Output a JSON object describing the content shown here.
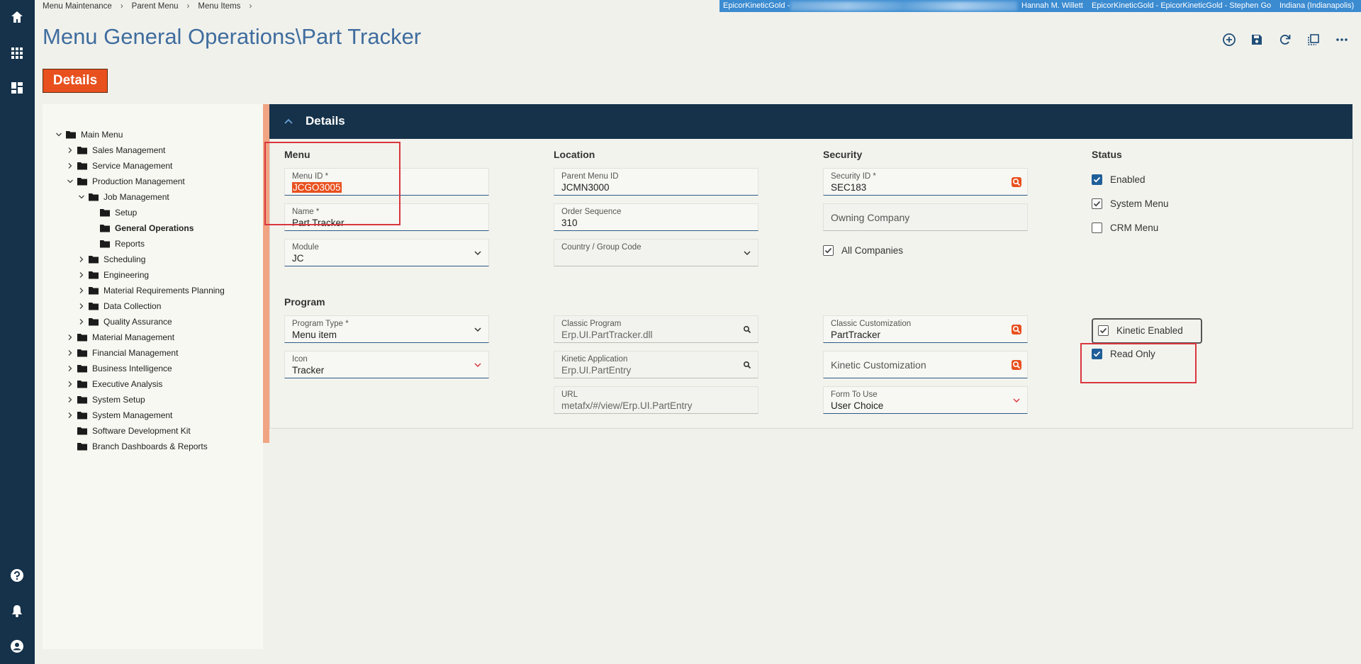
{
  "breadcrumb": [
    "Menu Maintenance",
    "Parent Menu",
    "Menu Items"
  ],
  "banner": [
    "EpicorKineticGold -",
    "Hannah M. Willett",
    "EpicorKineticGold - EpicorKineticGold - Stephen Go",
    "Indiana (Indianapolis)"
  ],
  "page_title": "Menu General Operations\\Part Tracker",
  "tab": "Details",
  "tree": [
    {
      "label": "Main Menu",
      "level": 0,
      "expanded": true
    },
    {
      "label": "Sales Management",
      "level": 1,
      "expanded": false
    },
    {
      "label": "Service Management",
      "level": 1,
      "expanded": false
    },
    {
      "label": "Production Management",
      "level": 1,
      "expanded": true
    },
    {
      "label": "Job Management",
      "level": 2,
      "expanded": true
    },
    {
      "label": "Setup",
      "level": 3
    },
    {
      "label": "General Operations",
      "level": 3,
      "selected": true
    },
    {
      "label": "Reports",
      "level": 3
    },
    {
      "label": "Scheduling",
      "level": 2,
      "expanded": false
    },
    {
      "label": "Engineering",
      "level": 2,
      "expanded": false
    },
    {
      "label": "Material Requirements Planning",
      "level": 2,
      "expanded": false
    },
    {
      "label": "Data Collection",
      "level": 2,
      "expanded": false
    },
    {
      "label": "Quality Assurance",
      "level": 2,
      "expanded": false
    },
    {
      "label": "Material Management",
      "level": 1,
      "expanded": false
    },
    {
      "label": "Financial Management",
      "level": 1,
      "expanded": false
    },
    {
      "label": "Business Intelligence",
      "level": 1,
      "expanded": false
    },
    {
      "label": "Executive Analysis",
      "level": 1,
      "expanded": false
    },
    {
      "label": "System Setup",
      "level": 1,
      "expanded": false
    },
    {
      "label": "System Management",
      "level": 1,
      "expanded": false
    },
    {
      "label": "Software Development Kit",
      "level": 1
    },
    {
      "label": "Branch Dashboards & Reports",
      "level": 1
    }
  ],
  "panel_title": "Details",
  "top": {
    "columns": [
      {
        "heading": "Menu",
        "items": [
          {
            "label": "Menu ID *",
            "value": "JCGO3005",
            "selected": true
          },
          {
            "label": "Name *",
            "value": "Part Tracker"
          },
          {
            "label": "Module",
            "value": "JC",
            "control": "select"
          }
        ]
      },
      {
        "heading": "Location",
        "items": [
          {
            "label": "Parent Menu ID",
            "value": "JCMN3000"
          },
          {
            "label": "Order Sequence",
            "value": "310"
          },
          {
            "label": "Country / Group Code",
            "control": "select",
            "disabled": true
          }
        ]
      },
      {
        "heading": "Security",
        "items": [
          {
            "label": "Security ID *",
            "value": "SEC183",
            "control": "search"
          },
          {
            "label": "Owning Company",
            "disabled": true
          },
          {
            "checkbox": "All Companies",
            "checked": true,
            "disabled": true
          }
        ]
      },
      {
        "heading": "Status",
        "items": [
          {
            "checkbox": "Enabled",
            "checked": true
          },
          {
            "checkbox": "System Menu",
            "checked": true,
            "disabled": true
          },
          {
            "checkbox": "CRM Menu",
            "checked": false
          }
        ]
      }
    ]
  },
  "program": {
    "heading": "Program",
    "columns": [
      {
        "items": [
          {
            "label": "Program Type *",
            "value": "Menu item",
            "control": "select"
          },
          {
            "label": "Icon",
            "value": "Tracker",
            "control": "select",
            "accent": true
          }
        ]
      },
      {
        "items": [
          {
            "label": "Classic Program",
            "value": "Erp.UI.PartTracker.dll",
            "control": "lookup",
            "disabled": true
          },
          {
            "label": "Kinetic Application",
            "value": "Erp.UI.PartEntry",
            "control": "lookup",
            "disabled": true
          },
          {
            "label": "URL",
            "value": "metafx/#/view/Erp.UI.PartEntry",
            "disabled": true
          }
        ]
      },
      {
        "items": [
          {
            "label": "Classic Customization",
            "value": "PartTracker",
            "control": "search"
          },
          {
            "label": "Kinetic Customization",
            "control": "search"
          },
          {
            "label": "Form To Use",
            "value": "User Choice",
            "control": "select",
            "accent": true
          }
        ]
      },
      {
        "items": [
          {
            "checkbox": "Kinetic Enabled",
            "checked": true,
            "disabled": true,
            "boxed": true
          },
          {
            "checkbox": "Read Only",
            "checked": true
          }
        ]
      }
    ]
  }
}
